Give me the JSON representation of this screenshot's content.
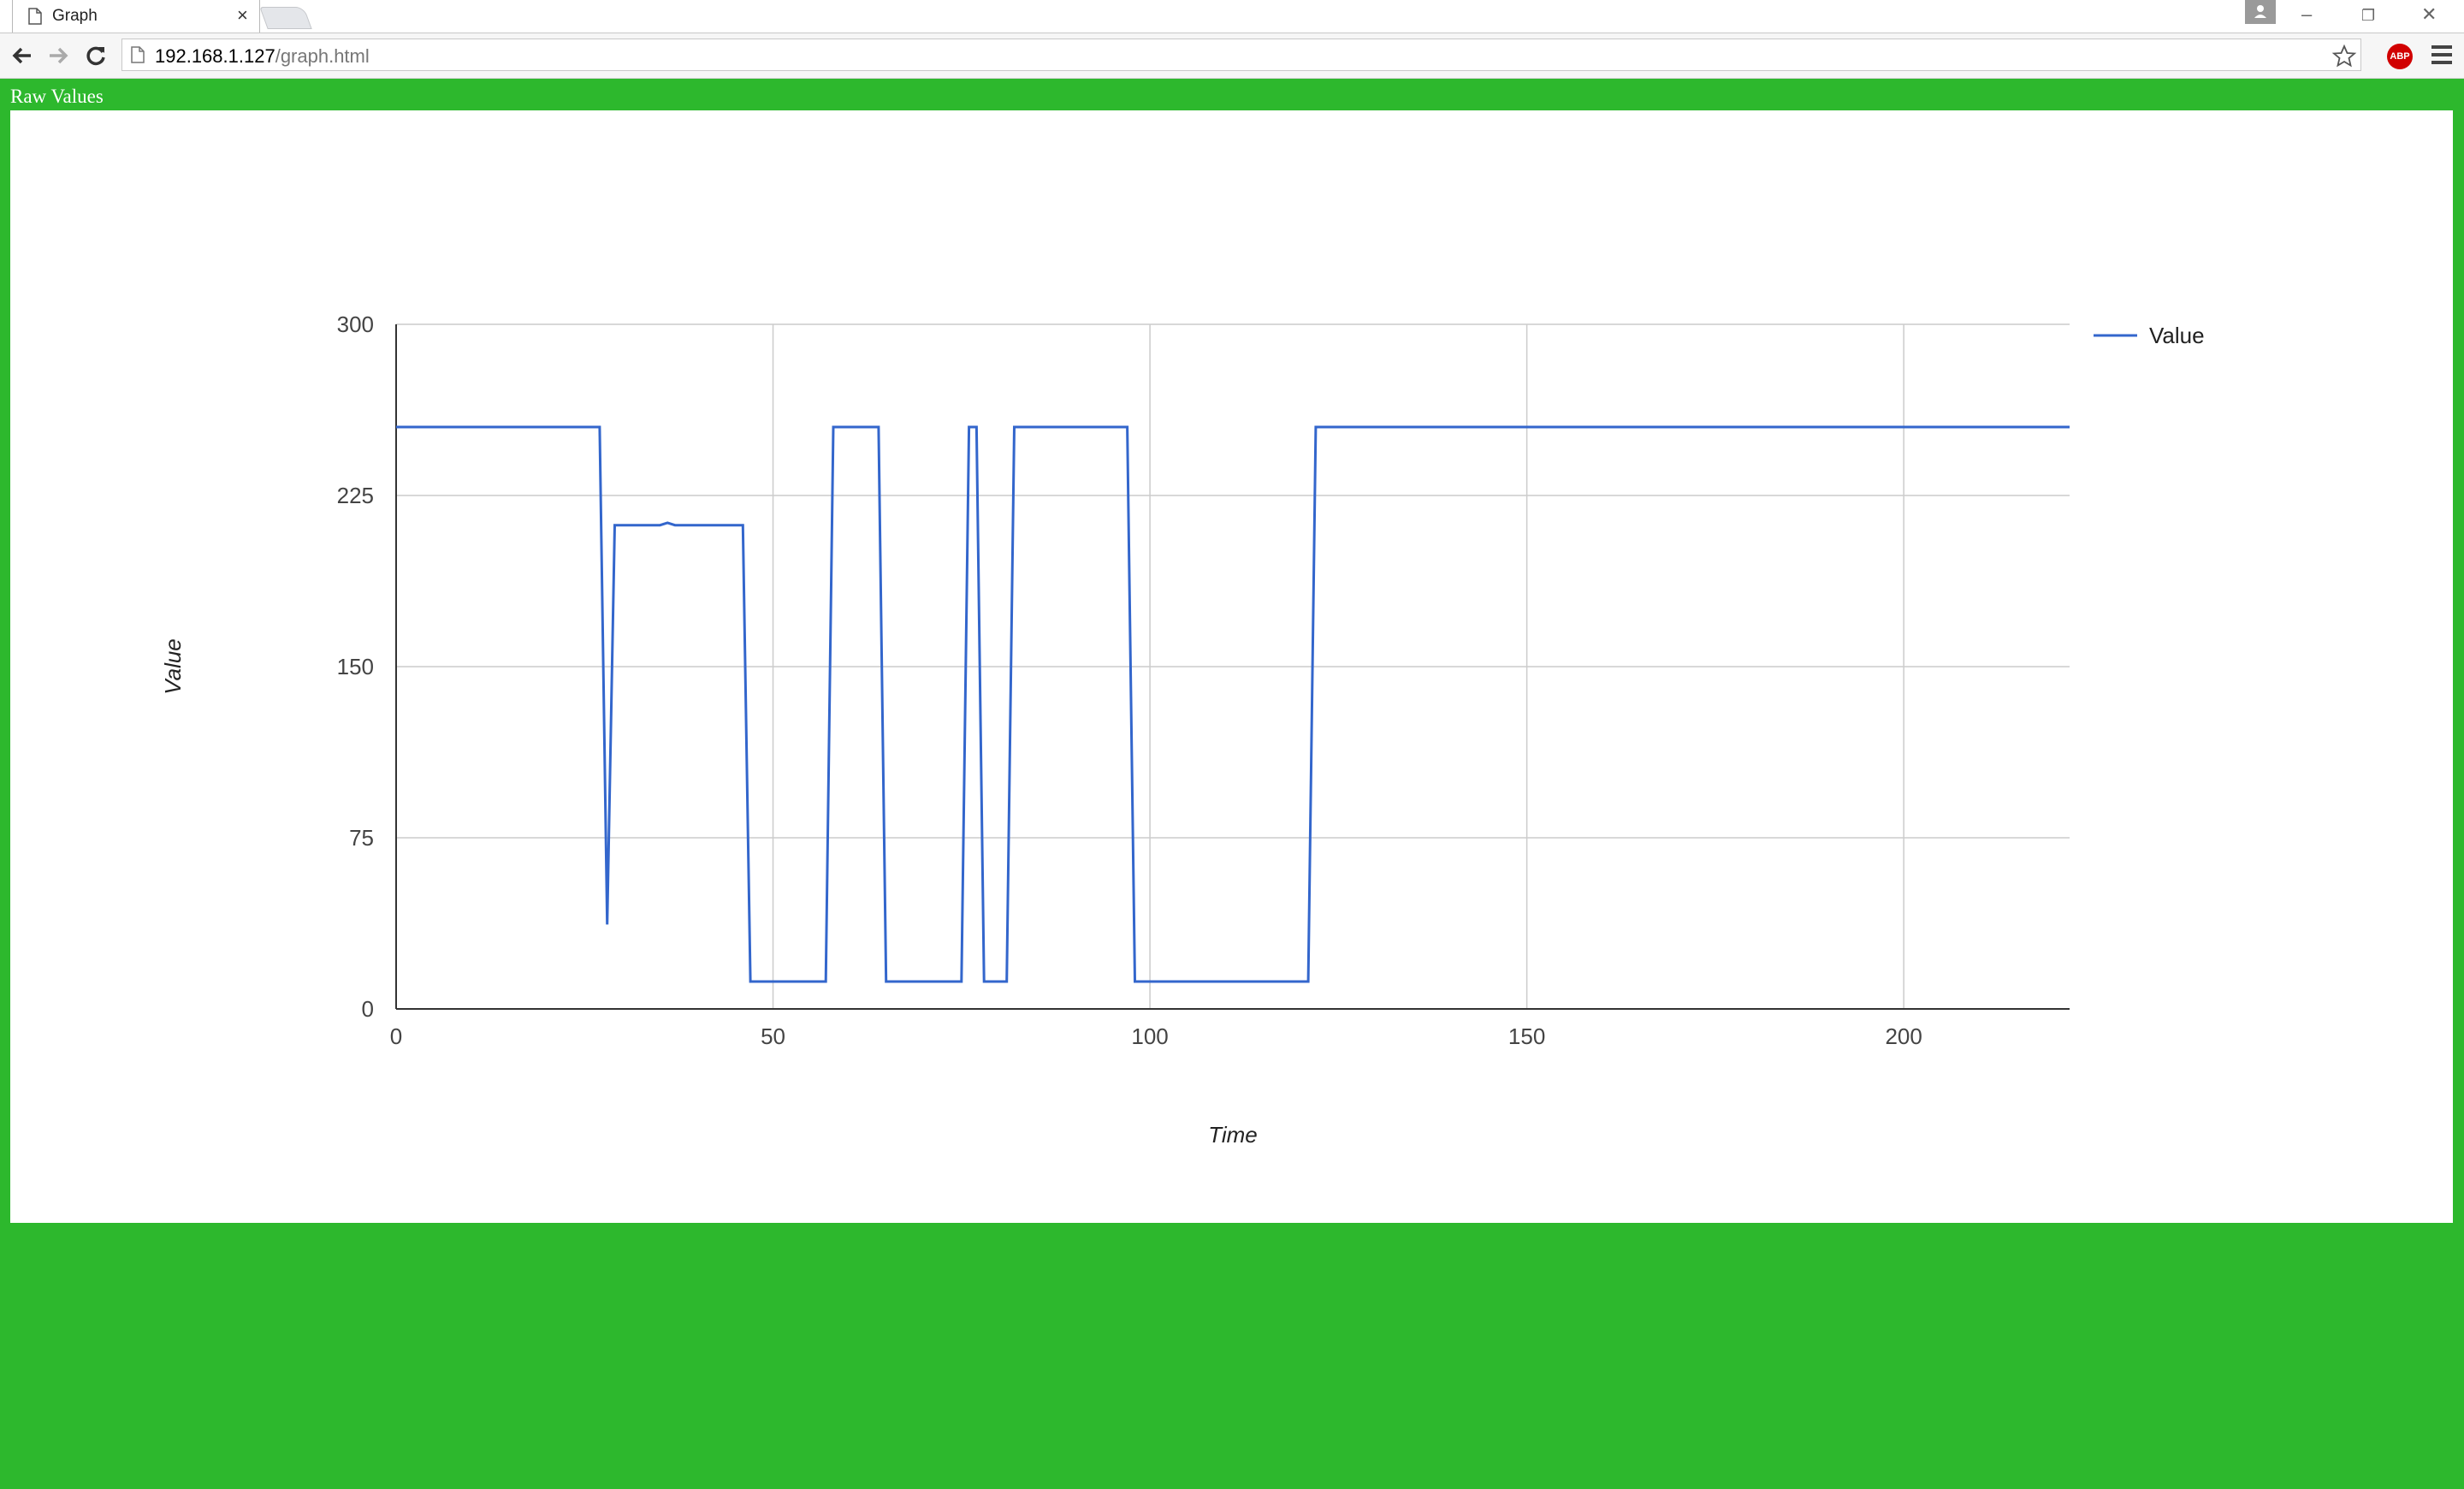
{
  "browser": {
    "tab_title": "Graph",
    "url_host": "192.168.1.127",
    "url_path": "/graph.html",
    "abp_label": "ABP"
  },
  "page": {
    "heading": "Raw Values"
  },
  "colors": {
    "page_background": "#2db82d",
    "series_line": "#3366cc"
  },
  "chart_data": {
    "type": "line",
    "title": "",
    "xlabel": "Time",
    "ylabel": "Value",
    "xlim": [
      0,
      222
    ],
    "ylim": [
      0,
      300
    ],
    "xticks": [
      0,
      50,
      100,
      150,
      200
    ],
    "yticks": [
      0,
      75,
      150,
      225,
      300
    ],
    "grid": true,
    "legend_position": "right",
    "series": [
      {
        "name": "Value",
        "color": "#3366cc",
        "points": [
          [
            0,
            255
          ],
          [
            27,
            255
          ],
          [
            28,
            37
          ],
          [
            29,
            212
          ],
          [
            35,
            212
          ],
          [
            36,
            213
          ],
          [
            37,
            212
          ],
          [
            46,
            212
          ],
          [
            47,
            12
          ],
          [
            57,
            12
          ],
          [
            58,
            255
          ],
          [
            64,
            255
          ],
          [
            65,
            12
          ],
          [
            75,
            12
          ],
          [
            76,
            255
          ],
          [
            77,
            255
          ],
          [
            78,
            12
          ],
          [
            81,
            12
          ],
          [
            82,
            255
          ],
          [
            97,
            255
          ],
          [
            98,
            12
          ],
          [
            121,
            12
          ],
          [
            122,
            255
          ],
          [
            222,
            255
          ]
        ]
      }
    ]
  }
}
